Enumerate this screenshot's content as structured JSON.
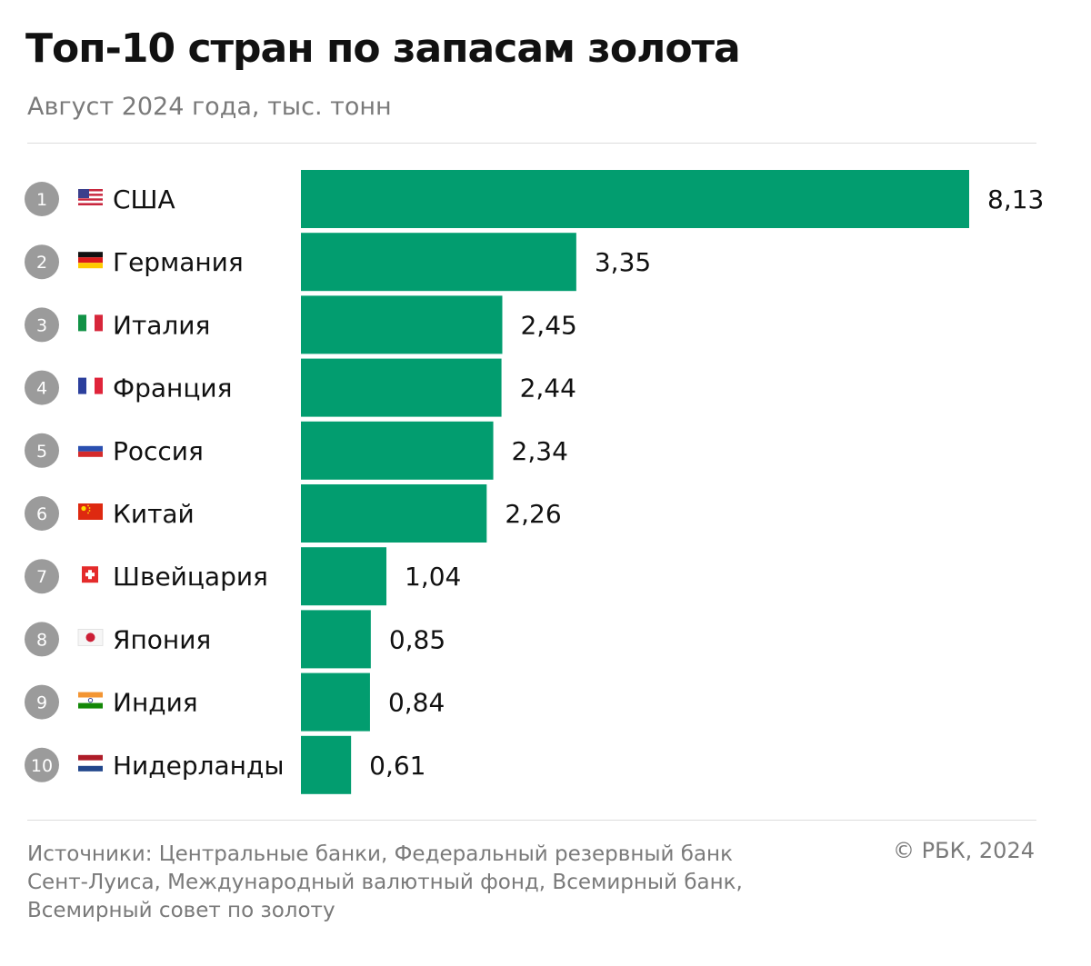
{
  "chart_data": {
    "type": "bar",
    "orientation": "horizontal",
    "title": "Топ-10 стран по запасам золота",
    "subtitle": "Август 2024 года, тыс. тонн",
    "categories": [
      "США",
      "Германия",
      "Италия",
      "Франция",
      "Россия",
      "Китай",
      "Швейцария",
      "Япония",
      "Индия",
      "Нидерланды"
    ],
    "ranks": [
      "1",
      "2",
      "3",
      "4",
      "5",
      "6",
      "7",
      "8",
      "9",
      "10"
    ],
    "values": [
      8.13,
      3.35,
      2.45,
      2.44,
      2.34,
      2.26,
      1.04,
      0.85,
      0.84,
      0.61
    ],
    "value_labels": [
      "8,13",
      "3,35",
      "2,45",
      "2,44",
      "2,34",
      "2,26",
      "1,04",
      "0,85",
      "0,84",
      "0,61"
    ],
    "flags": [
      "flag-usa-icon",
      "flag-germany-icon",
      "flag-italy-icon",
      "flag-france-icon",
      "flag-russia-icon",
      "flag-china-icon",
      "flag-switzerland-icon",
      "flag-japan-icon",
      "flag-india-icon",
      "flag-netherlands-icon"
    ],
    "xlim": [
      0,
      8.13
    ],
    "bar_color": "#029d6f",
    "grid": false,
    "legend": "none"
  },
  "footer": {
    "source_lines": [
      "Источники: Центральные банки, Федеральный резервный банк",
      "Сент-Луиса, Международный валютный фонд, Всемирный банк,",
      "Всемирный совет по золоту"
    ],
    "credit": "© РБК, 2024"
  },
  "colors": {
    "title": "#111111",
    "muted": "#7a7a7a",
    "rank_circle": "#9b9b9b"
  }
}
